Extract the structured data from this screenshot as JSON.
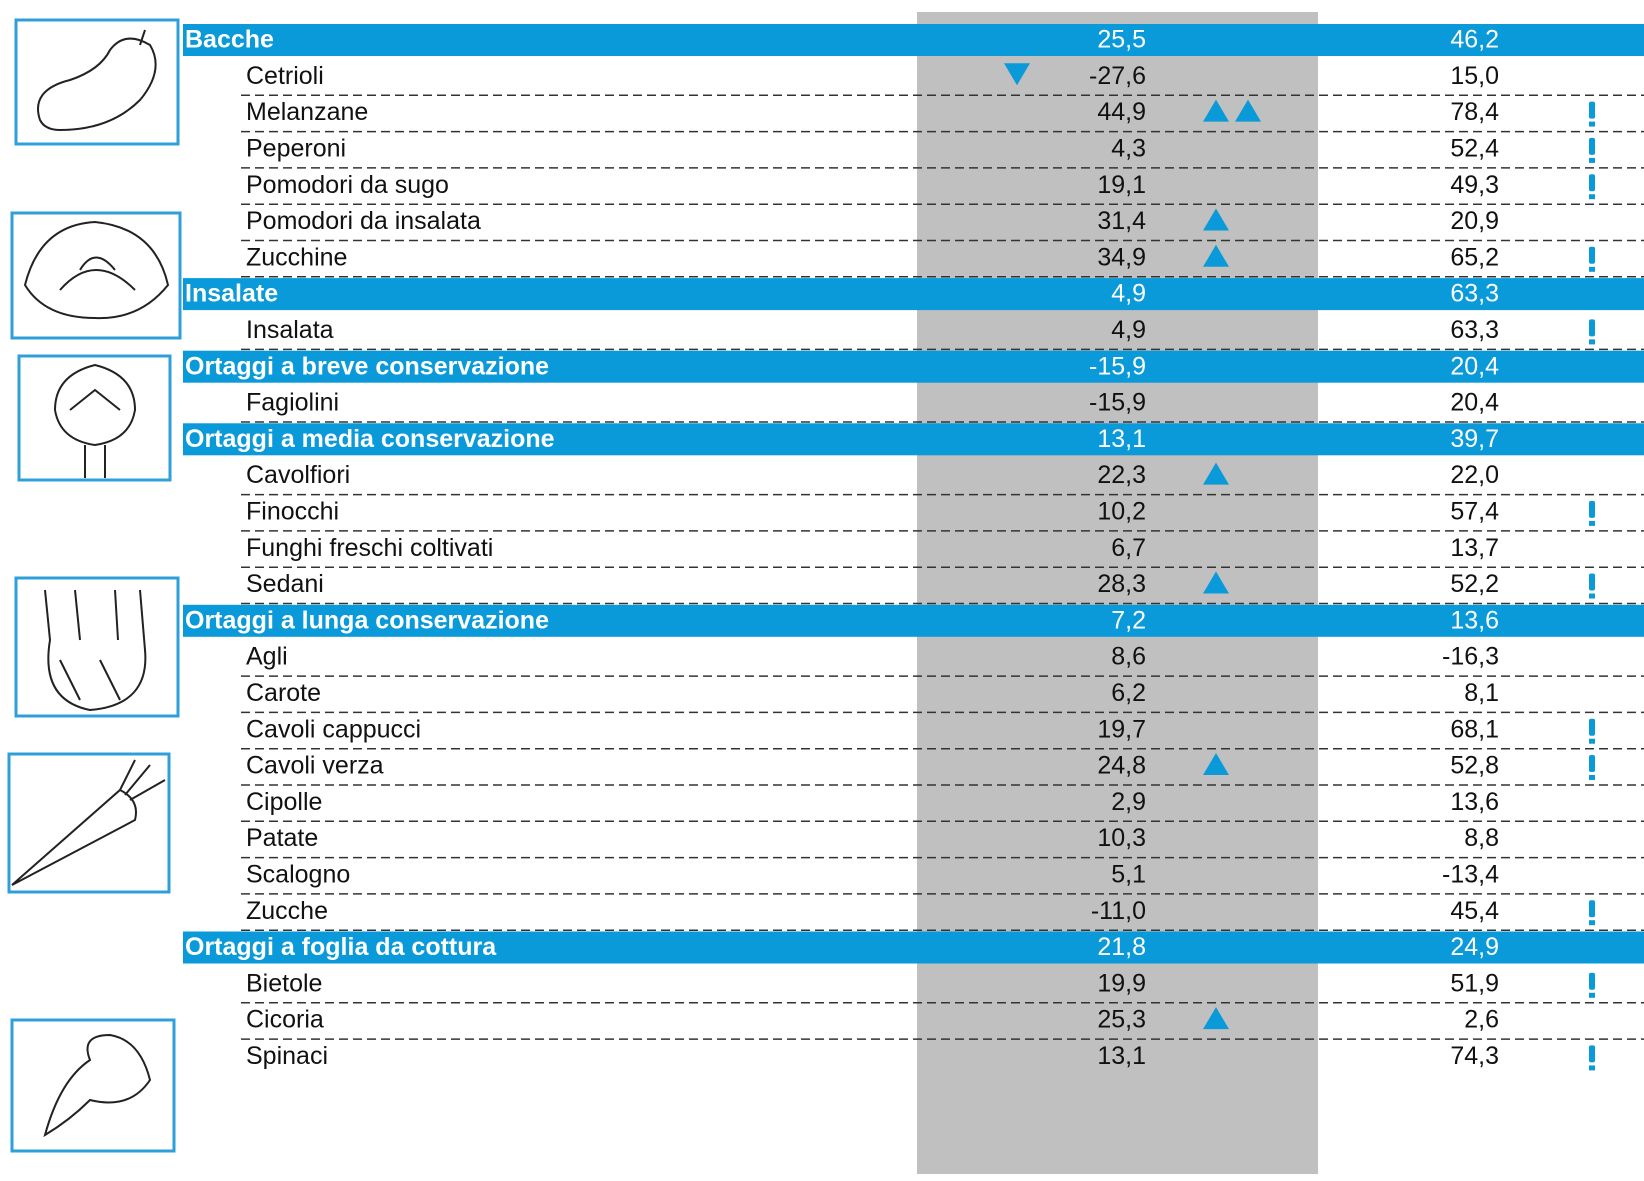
{
  "table": {
    "groups": [
      {
        "name": "Bacche",
        "v1": "25,5",
        "v2": "46,2",
        "rows": [
          {
            "name": "Cetrioli",
            "v1": "-27,6",
            "v2": "15,0",
            "down": 1
          },
          {
            "name": "Melanzane",
            "v1": "44,9",
            "v2": "78,4",
            "up": 2,
            "alert": true
          },
          {
            "name": "Peperoni",
            "v1": "4,3",
            "v2": "52,4",
            "alert": true
          },
          {
            "name": "Pomodori da sugo",
            "v1": "19,1",
            "v2": "49,3",
            "alert": true
          },
          {
            "name": "Pomodori da insalata",
            "v1": "31,4",
            "v2": "20,9",
            "up": 1
          },
          {
            "name": "Zucchine",
            "v1": "34,9",
            "v2": "65,2",
            "up": 1,
            "alert": true
          }
        ]
      },
      {
        "name": "Insalate",
        "v1": "4,9",
        "v2": "63,3",
        "rows": [
          {
            "name": "Insalata",
            "v1": "4,9",
            "v2": "63,3",
            "alert": true
          }
        ]
      },
      {
        "name": "Ortaggi a breve conservazione",
        "v1": "-15,9",
        "v2": "20,4",
        "rows": [
          {
            "name": "Fagiolini",
            "v1": "-15,9",
            "v2": "20,4"
          }
        ]
      },
      {
        "name": "Ortaggi a media conservazione",
        "v1": "13,1",
        "v2": "39,7",
        "rows": [
          {
            "name": "Cavolfiori",
            "v1": "22,3",
            "v2": "22,0",
            "up": 1
          },
          {
            "name": "Finocchi",
            "v1": "10,2",
            "v2": "57,4",
            "alert": true
          },
          {
            "name": "Funghi freschi coltivati",
            "v1": "6,7",
            "v2": "13,7"
          },
          {
            "name": "Sedani",
            "v1": "28,3",
            "v2": "52,2",
            "up": 1,
            "alert": true
          }
        ]
      },
      {
        "name": "Ortaggi a lunga conservazione",
        "v1": "7,2",
        "v2": "13,6",
        "rows": [
          {
            "name": "Agli",
            "v1": "8,6",
            "v2": "-16,3"
          },
          {
            "name": "Carote",
            "v1": "6,2",
            "v2": "8,1"
          },
          {
            "name": "Cavoli cappucci",
            "v1": "19,7",
            "v2": "68,1",
            "alert": true
          },
          {
            "name": "Cavoli verza",
            "v1": "24,8",
            "v2": "52,8",
            "up": 1,
            "alert": true
          },
          {
            "name": "Cipolle",
            "v1": "2,9",
            "v2": "13,6"
          },
          {
            "name": "Patate",
            "v1": "10,3",
            "v2": "8,8"
          },
          {
            "name": "Scalogno",
            "v1": "5,1",
            "v2": "-13,4"
          },
          {
            "name": "Zucche",
            "v1": "-11,0",
            "v2": "45,4",
            "alert": true
          }
        ]
      },
      {
        "name": "Ortaggi a foglia da cottura",
        "v1": "21,8",
        "v2": "24,9",
        "rows": [
          {
            "name": "Bietole",
            "v1": "19,9",
            "v2": "51,9",
            "alert": true
          },
          {
            "name": "Cicoria",
            "v1": "25,3",
            "v2": "2,6",
            "up": 1
          },
          {
            "name": "Spinaci",
            "v1": "13,1",
            "v2": "74,3",
            "alert": true
          }
        ]
      }
    ]
  }
}
